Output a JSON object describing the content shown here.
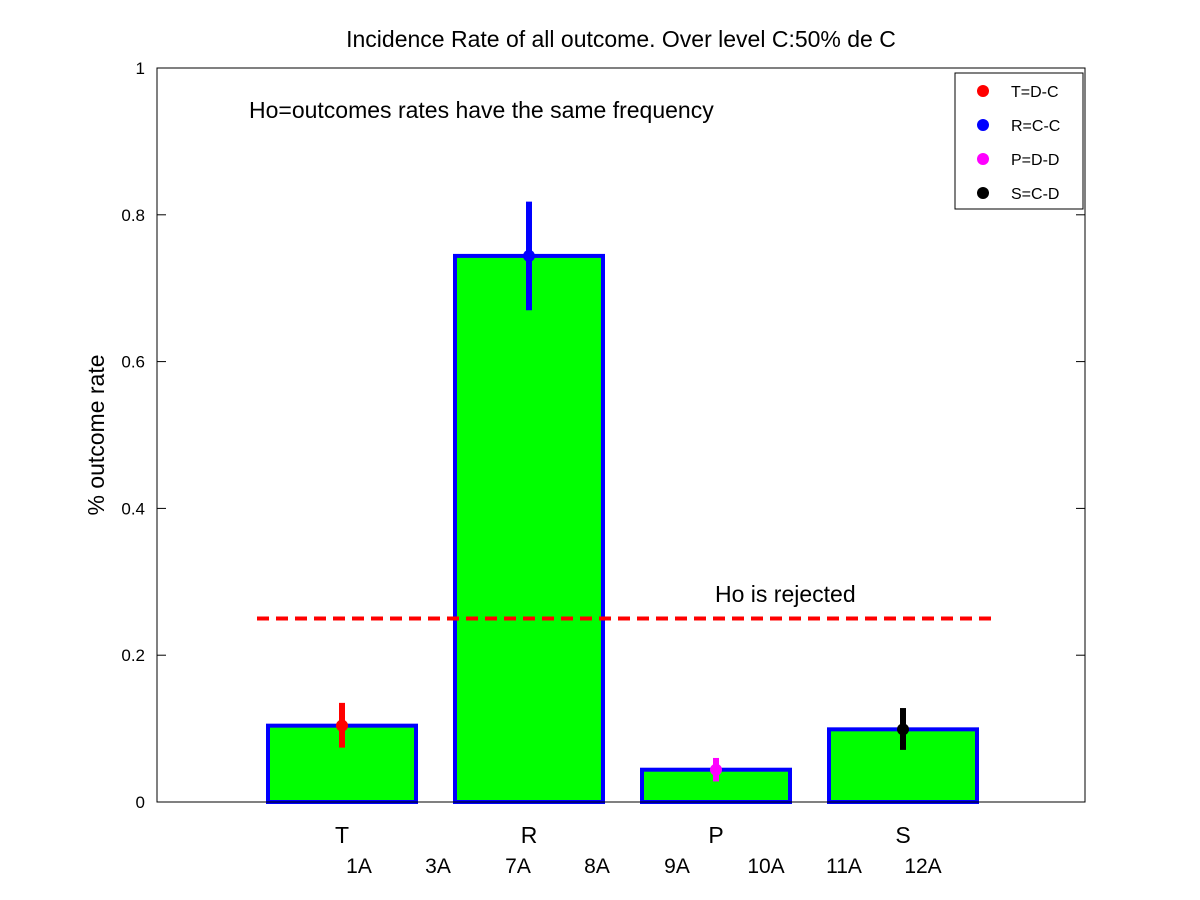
{
  "chart_data": {
    "type": "bar",
    "title": "Incidence Rate of all outcome. Over level C:50% de C",
    "xlabel": "",
    "ylabel": "% outcome rate",
    "ylim": [
      0,
      1
    ],
    "yticks": [
      "0",
      "0.2",
      "0.4",
      "0.6",
      "0.8",
      "1"
    ],
    "ytick_values": [
      0,
      0.2,
      0.4,
      0.6,
      0.8,
      1
    ],
    "categories": [
      "T",
      "R",
      "P",
      "S"
    ],
    "values": [
      0.104,
      0.744,
      0.044,
      0.099
    ],
    "error_low": [
      0.074,
      0.67,
      0.028,
      0.071
    ],
    "error_high": [
      0.135,
      0.818,
      0.06,
      0.128
    ],
    "marker_colors": [
      "#ff0000",
      "#0000ff",
      "#ff00ff",
      "#000000"
    ],
    "bar_fill": "#00ff00",
    "bar_edge": "#0000ff",
    "secondary_labels": [
      "1A",
      "3A",
      "7A",
      "8A",
      "9A",
      "10A",
      "11A",
      "12A"
    ],
    "threshold": {
      "value": 0.25,
      "color": "#ff0000"
    },
    "hypothesis_text": "Ho=outcomes rates have the same frequency",
    "result_text": "Ho is rejected",
    "legend": {
      "position": "top-right",
      "entries": [
        "T=D-C",
        "R=C-C",
        "P=D-D",
        "S=C-D"
      ]
    },
    "grid": false
  }
}
